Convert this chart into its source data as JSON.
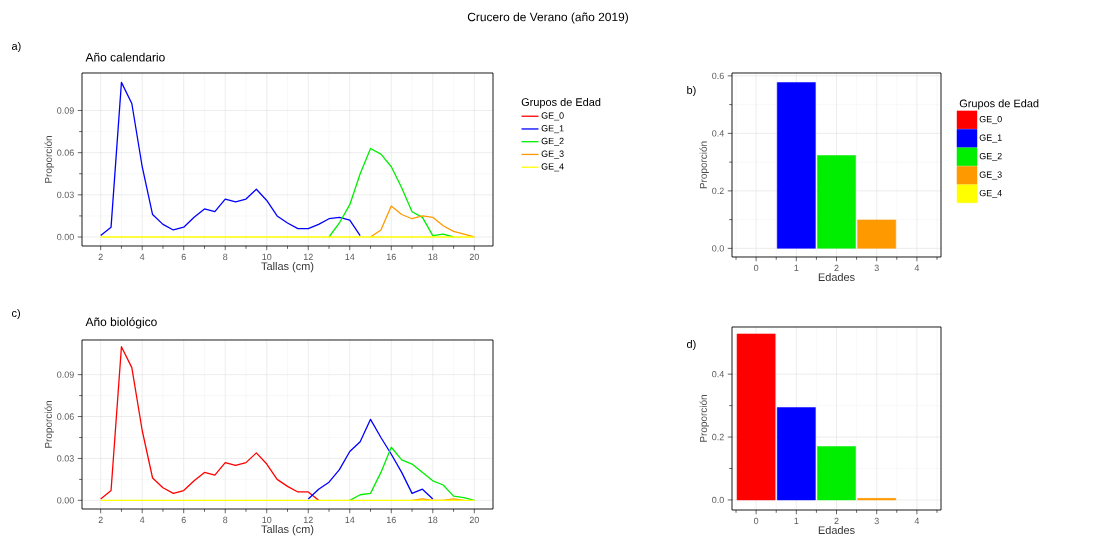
{
  "chart_data": [
    {
      "type": "line",
      "title": "Año calendario",
      "xlabel": "Tallas (cm)",
      "ylabel": "Proporción",
      "xlim": [
        1.1,
        20.9
      ],
      "ylim": [
        -0.0064,
        0.1167
      ],
      "xticks": [
        2,
        4,
        6,
        8,
        10,
        12,
        14,
        16,
        18,
        20
      ],
      "yticks": [
        {
          "value": 0,
          "label": "0.00"
        },
        {
          "value": 0.03,
          "label": "0.03"
        },
        {
          "value": 0.06,
          "label": "0.06"
        },
        {
          "value": 0.09,
          "label": "0.09"
        }
      ],
      "grid": true,
      "legend": "right",
      "legend_title": "Grupos de Edad",
      "annotations": [
        "Crucero de Verano (año 2019)",
        "a)"
      ],
      "series": [
        {
          "name": "GE_0",
          "color": "#ff0000"
        },
        {
          "name": "GE_1",
          "color": "#0000ff",
          "x": [
            2,
            2.5,
            3,
            3.5,
            4,
            4.5,
            5,
            5.5,
            6,
            6.5,
            7,
            7.5,
            8,
            8.5,
            9,
            9.5,
            10,
            10.5,
            11,
            11.5,
            12,
            12.5,
            13,
            13.5,
            14,
            14.5
          ],
          "values": [
            0.001,
            0.007,
            0.11,
            0.095,
            0.05,
            0.016,
            0.009,
            0.005,
            0.007,
            0.014,
            0.02,
            0.018,
            0.027,
            0.025,
            0.027,
            0.034,
            0.026,
            0.015,
            0.01,
            0.006,
            0.006,
            0.009,
            0.013,
            0.014,
            0.012,
            0.001
          ]
        },
        {
          "name": "GE_2",
          "color": "#00ee00",
          "x": [
            13,
            13.5,
            14,
            14.5,
            15,
            15.5,
            16,
            16.5,
            17,
            17.5,
            18,
            18.5,
            19
          ],
          "values": [
            0.0,
            0.01,
            0.023,
            0.045,
            0.063,
            0.059,
            0.05,
            0.035,
            0.018,
            0.014,
            0.001,
            0.002,
            0.0
          ]
        },
        {
          "name": "GE_3",
          "color": "#ff9900",
          "x": [
            15,
            15.5,
            16,
            16.5,
            17,
            17.5,
            18,
            18.5,
            19,
            19.5,
            20
          ],
          "values": [
            0.0,
            0.005,
            0.022,
            0.016,
            0.013,
            0.015,
            0.014,
            0.008,
            0.004,
            0.002,
            0.0
          ]
        },
        {
          "name": "GE_4",
          "color": "#ffff00",
          "x": [
            2,
            20
          ],
          "values": [
            0,
            0
          ]
        }
      ]
    },
    {
      "type": "bar",
      "xlabel": "Edades",
      "ylabel": "Proporción",
      "categories": [
        "0",
        "1",
        "2",
        "3",
        "4"
      ],
      "ylim": [
        -0.03,
        0.61
      ],
      "yticks": [
        {
          "value": 0,
          "label": "0.0"
        },
        {
          "value": 0.2,
          "label": "0.2"
        },
        {
          "value": 0.4,
          "label": "0.4"
        },
        {
          "value": 0.6,
          "label": "0.6"
        }
      ],
      "grid": true,
      "legend": "right",
      "legend_title": "Grupos de Edad",
      "annotations": [
        "b)"
      ],
      "series": [
        {
          "name": "GE_0",
          "color": "#ff0000",
          "values": [
            null,
            null,
            null,
            null,
            null
          ]
        },
        {
          "name": "GE_1",
          "color": "#0000ff",
          "values": [
            null,
            0.577,
            null,
            null,
            null
          ]
        },
        {
          "name": "GE_2",
          "color": "#00ee00",
          "values": [
            null,
            null,
            0.323,
            null,
            null
          ]
        },
        {
          "name": "GE_3",
          "color": "#ff9900",
          "values": [
            null,
            null,
            null,
            0.099,
            null
          ]
        },
        {
          "name": "GE_4",
          "color": "#ffff00",
          "values": [
            null,
            null,
            null,
            null,
            null
          ]
        }
      ]
    },
    {
      "type": "line",
      "title": "Año biológico",
      "xlabel": "Tallas (cm)",
      "ylabel": "Proporción",
      "xlim": [
        1.1,
        20.9
      ],
      "ylim": [
        -0.0062,
        0.1148
      ],
      "xticks": [
        2,
        4,
        6,
        8,
        10,
        12,
        14,
        16,
        18,
        20
      ],
      "yticks": [
        {
          "value": 0,
          "label": "0.00"
        },
        {
          "value": 0.03,
          "label": "0.03"
        },
        {
          "value": 0.06,
          "label": "0.06"
        },
        {
          "value": 0.09,
          "label": "0.09"
        }
      ],
      "grid": true,
      "annotations": [
        "c)"
      ],
      "series": [
        {
          "color": "#ff0000",
          "x": [
            2,
            2.5,
            3,
            3.5,
            4,
            4.5,
            5,
            5.5,
            6,
            6.5,
            7,
            7.5,
            8,
            8.5,
            9,
            9.5,
            10,
            10.5,
            11,
            11.5,
            12,
            12.5
          ],
          "values": [
            0.001,
            0.007,
            0.11,
            0.095,
            0.05,
            0.016,
            0.009,
            0.005,
            0.007,
            0.014,
            0.02,
            0.018,
            0.027,
            0.025,
            0.027,
            0.034,
            0.026,
            0.015,
            0.01,
            0.006,
            0.006,
            0.0
          ]
        },
        {
          "color": "#0000ff",
          "x": [
            12,
            12.5,
            13,
            13.5,
            14,
            14.5,
            15,
            15.5,
            16,
            16.5,
            17,
            17.5,
            18
          ],
          "values": [
            0.001,
            0.008,
            0.013,
            0.022,
            0.035,
            0.042,
            0.058,
            0.045,
            0.033,
            0.02,
            0.005,
            0.008,
            0.001
          ]
        },
        {
          "color": "#00ee00",
          "x": [
            14,
            14.5,
            15,
            15.5,
            16,
            16.5,
            17,
            17.5,
            18,
            18.5,
            19,
            19.5,
            20
          ],
          "values": [
            0.0,
            0.004,
            0.005,
            0.02,
            0.038,
            0.029,
            0.026,
            0.02,
            0.014,
            0.011,
            0.003,
            0.002,
            0.0
          ]
        },
        {
          "color": "#ff9900",
          "x": [
            17,
            17.5,
            18,
            18.5,
            19,
            19.5
          ],
          "values": [
            0,
            0.001,
            0,
            0,
            0.001,
            0
          ]
        },
        {
          "color": "#ffff00",
          "x": [
            2,
            20
          ],
          "values": [
            0,
            0
          ]
        }
      ]
    },
    {
      "type": "bar",
      "xlabel": "Edades",
      "ylabel": "Proporción",
      "categories": [
        "0",
        "1",
        "2",
        "3",
        "4"
      ],
      "ylim": [
        -0.032,
        0.55
      ],
      "yticks": [
        {
          "value": 0,
          "label": "0.0"
        },
        {
          "value": 0.2,
          "label": "0.2"
        },
        {
          "value": 0.4,
          "label": "0.4"
        }
      ],
      "grid": true,
      "annotations": [
        "d)"
      ],
      "series": [
        {
          "color": "#ff0000",
          "values": [
            0.528,
            null,
            null,
            null,
            null
          ]
        },
        {
          "color": "#0000ff",
          "values": [
            null,
            0.294,
            null,
            null,
            null
          ]
        },
        {
          "color": "#00ee00",
          "values": [
            null,
            null,
            0.17,
            null,
            null
          ]
        },
        {
          "color": "#ff9900",
          "values": [
            null,
            null,
            null,
            0.005,
            null
          ]
        },
        {
          "color": "#ffff00",
          "values": [
            null,
            null,
            null,
            null,
            null
          ]
        }
      ]
    }
  ]
}
